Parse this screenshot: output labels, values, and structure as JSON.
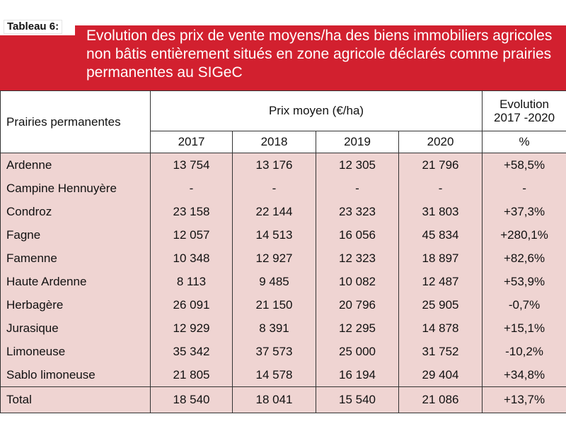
{
  "table_label": "Tableau 6:",
  "title": "Evolution des prix de vente moyens/ha des biens immobiliers agricoles non bâtis entièrement situés en zone agricole déclarés comme prairies permanentes au SIGeC",
  "header": {
    "row_label": "Prairies permanentes",
    "price_group": "Prix moyen (€/ha)",
    "evolution_line1": "Evolution",
    "evolution_line2": "2017 -2020",
    "years": [
      "2017",
      "2018",
      "2019",
      "2020"
    ],
    "evolution_unit": "%"
  },
  "rows": [
    {
      "name": "Ardenne",
      "values": [
        "13 754",
        "13 176",
        "12 305",
        "21 796"
      ],
      "evolution": "+58,5%"
    },
    {
      "name": "Campine Hennuyère",
      "values": [
        "-",
        "-",
        "-",
        "-"
      ],
      "evolution": "-"
    },
    {
      "name": "Condroz",
      "values": [
        "23 158",
        "22 144",
        "23 323",
        "31 803"
      ],
      "evolution": "+37,3%"
    },
    {
      "name": "Fagne",
      "values": [
        "12 057",
        "14 513",
        "16 056",
        "45 834"
      ],
      "evolution": "+280,1%"
    },
    {
      "name": "Famenne",
      "values": [
        "10 348",
        "12 927",
        "12 323",
        "18 897"
      ],
      "evolution": "+82,6%"
    },
    {
      "name": "Haute Ardenne",
      "values": [
        "8 113",
        "9 485",
        "10 082",
        "12 487"
      ],
      "evolution": "+53,9%"
    },
    {
      "name": "Herbagère",
      "values": [
        "26 091",
        "21 150",
        "20 796",
        "25 905"
      ],
      "evolution": "-0,7%"
    },
    {
      "name": "Jurasique",
      "values": [
        "12 929",
        "8 391",
        "12 295",
        "14 878"
      ],
      "evolution": "+15,1%"
    },
    {
      "name": "Limoneuse",
      "values": [
        "35 342",
        "37 573",
        "25 000",
        "31 752"
      ],
      "evolution": "-10,2%"
    },
    {
      "name": "Sablo limoneuse",
      "values": [
        "21 805",
        "14 578",
        "16 194",
        "29 404"
      ],
      "evolution": "+34,8%"
    }
  ],
  "total": {
    "name": "Total",
    "values": [
      "18 540",
      "18 041",
      "15 540",
      "21 086"
    ],
    "evolution": "+13,7%"
  },
  "colors": {
    "banner": "#d2202f",
    "row_bg": "#efd4d2"
  }
}
